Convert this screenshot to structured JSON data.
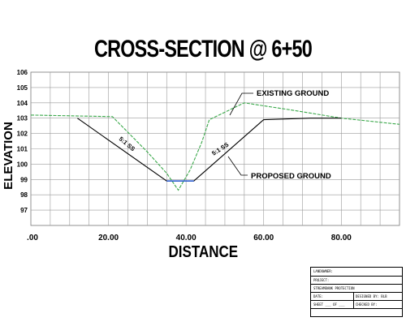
{
  "title": "CROSS-SECTION @ 6+50",
  "chart_data": {
    "type": "line",
    "xlabel": "DISTANCE",
    "ylabel": "ELEVATION",
    "xlim": [
      0,
      95
    ],
    "ylim": [
      96,
      106
    ],
    "x_ticks": [
      ".00",
      "20.00",
      "40.00",
      "60.00",
      "80.00"
    ],
    "y_ticks": [
      "97",
      "98",
      "99",
      "100",
      "101",
      "102",
      "103",
      "104",
      "105",
      "106"
    ],
    "grid": true,
    "series": [
      {
        "name": "EXISTING GROUND",
        "color": "#3aa84a",
        "dashed": true,
        "points": [
          [
            0,
            103.2
          ],
          [
            21,
            103.1
          ],
          [
            30,
            100.8
          ],
          [
            35,
            99.4
          ],
          [
            38,
            98.3
          ],
          [
            41,
            99.6
          ],
          [
            44,
            101.4
          ],
          [
            46,
            102.9
          ],
          [
            55,
            104.0
          ],
          [
            68,
            103.5
          ],
          [
            80,
            103.0
          ],
          [
            95,
            102.6
          ]
        ]
      },
      {
        "name": "PROPOSED GROUND",
        "color": "#000000",
        "dashed": false,
        "points": [
          [
            12,
            103.0
          ],
          [
            35,
            98.9
          ],
          [
            42,
            98.9
          ],
          [
            60,
            102.9
          ],
          [
            72,
            103.0
          ],
          [
            80,
            103.0
          ]
        ]
      },
      {
        "name": "",
        "color": "#2f5fd0",
        "dashed": false,
        "points": [
          [
            35,
            98.9
          ],
          [
            42,
            98.9
          ]
        ]
      }
    ],
    "annotations": [
      {
        "text": "EXISTING GROUND"
      },
      {
        "text": "PROPOSED GROUND"
      },
      {
        "text": "5:1 SS"
      },
      {
        "text": "5:1 SS"
      }
    ]
  },
  "title_block": {
    "landowner": "LANDOWNER:",
    "project": "PROJECT:",
    "streambank": "STREAMBANK PROTECTION",
    "date": "DATE:",
    "designed_by": "DESIGNED BY: BLB",
    "sheet": "SHEET ___ OF ___",
    "checked_by": "CHECKED BY:"
  }
}
